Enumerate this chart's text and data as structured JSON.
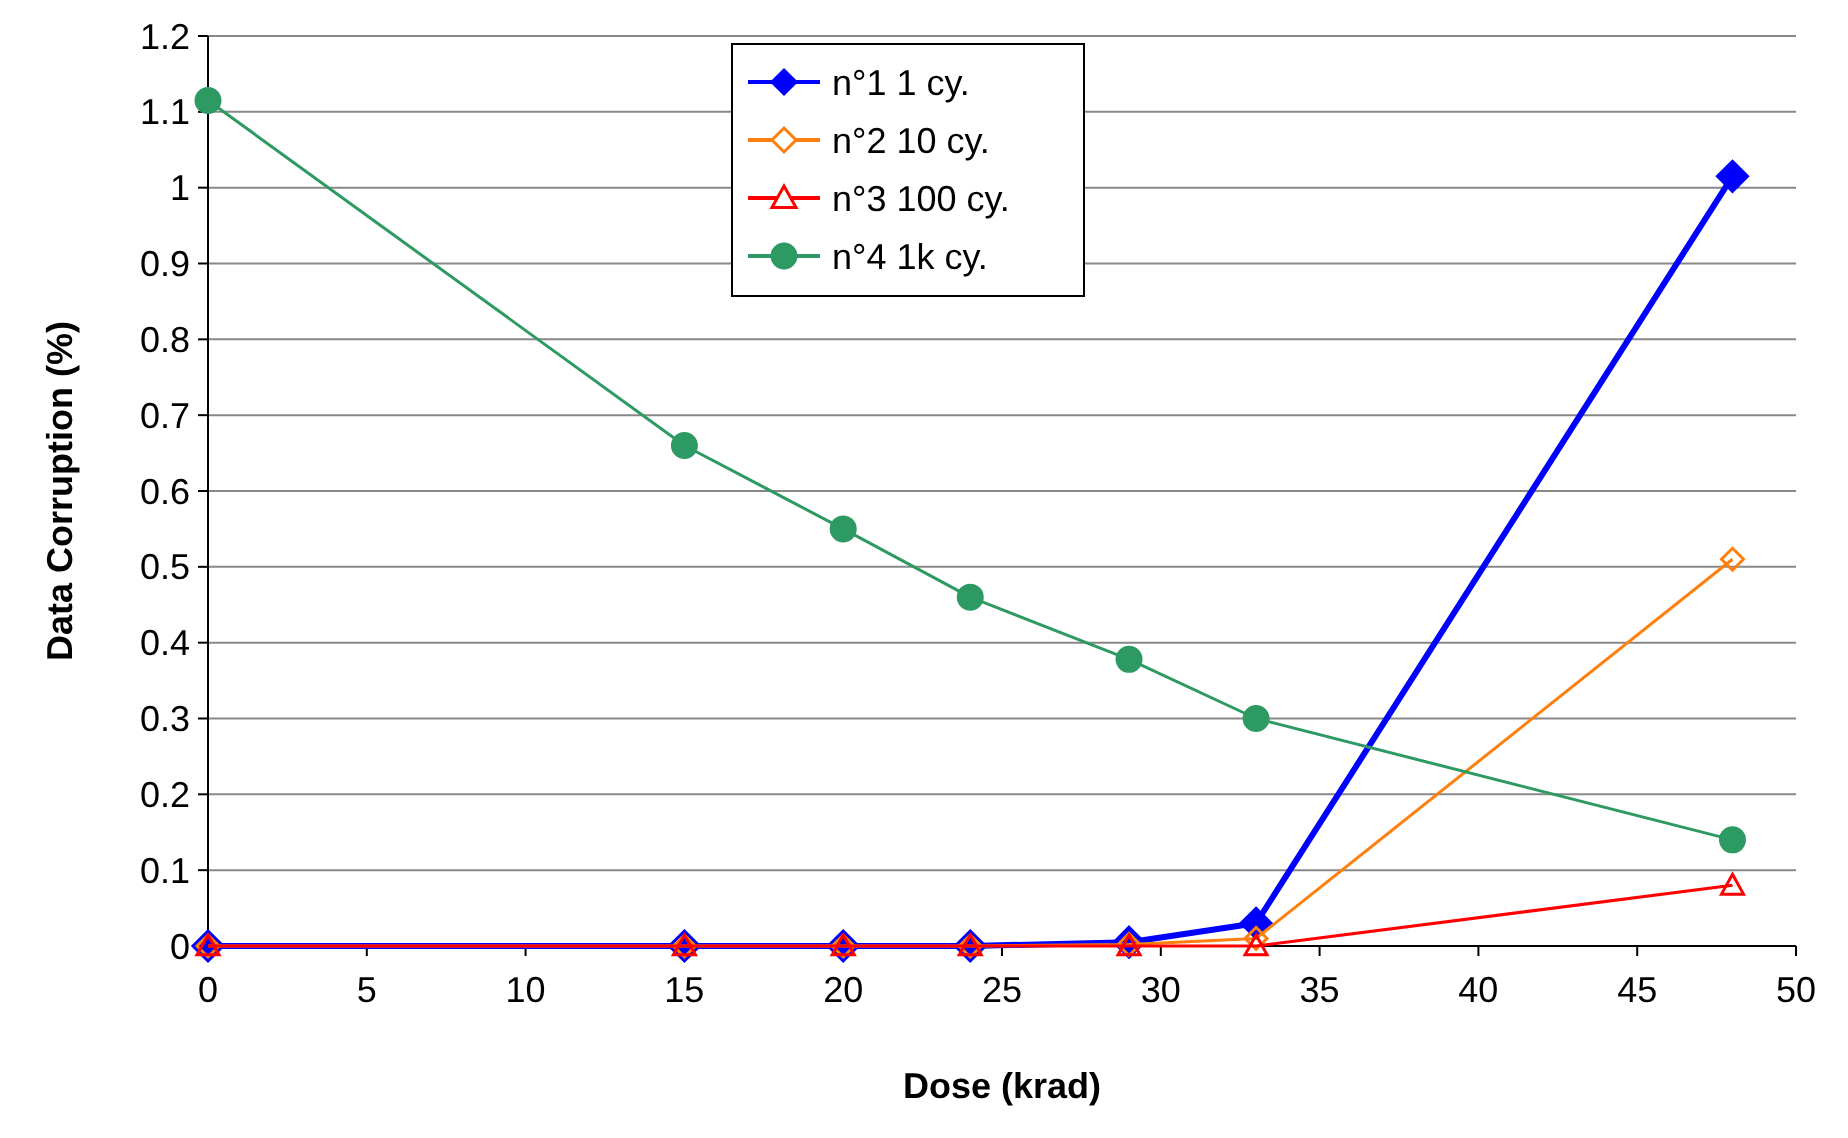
{
  "chart_data": {
    "type": "line",
    "xlabel": "Dose (krad)",
    "ylabel": "Data Corruption (%)",
    "x": [
      0,
      15,
      20,
      24,
      29,
      33,
      48
    ],
    "series": [
      {
        "name": "n°1 1 cy.",
        "color": "#0000ff",
        "marker": "diamond",
        "values": [
          0,
          0,
          0,
          0,
          0.005,
          0.03,
          1.015
        ]
      },
      {
        "name": "n°2 10 cy.",
        "color": "#ff7f0e",
        "marker": "diamond",
        "values": [
          0,
          0,
          0,
          0,
          0.002,
          0.01,
          0.51
        ]
      },
      {
        "name": "n°3 100 cy.",
        "color": "#ff0000",
        "marker": "triangle",
        "values": [
          0,
          0,
          0,
          0,
          0,
          0,
          0.08
        ]
      },
      {
        "name": "n°4 1k cy.",
        "color": "#2e9a63",
        "marker": "circle",
        "values": [
          1.115,
          0.66,
          0.55,
          0.46,
          0.378,
          0.3,
          0.14
        ]
      }
    ],
    "xlim": [
      0,
      50
    ],
    "xticks": [
      0,
      5,
      10,
      15,
      20,
      25,
      30,
      35,
      40,
      45,
      50
    ],
    "ylim": [
      0,
      1.2
    ],
    "yticks": [
      0,
      0.1,
      0.2,
      0.3,
      0.4,
      0.5,
      0.6,
      0.7,
      0.8,
      0.9,
      1,
      1.1,
      1.2
    ],
    "grid": "y",
    "legend": "top",
    "line_style": "solid"
  }
}
